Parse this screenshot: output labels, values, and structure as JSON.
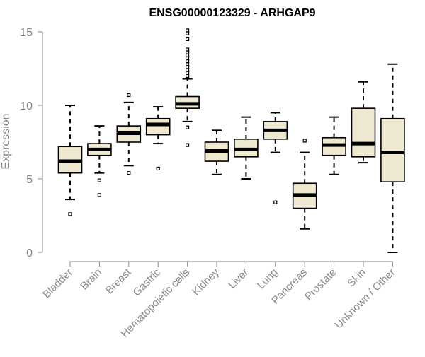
{
  "chart_data": {
    "type": "boxplot",
    "title": "ENSG00000123329 - ARHGAP9",
    "xlabel": "",
    "ylabel": "Expression",
    "ylim": [
      0,
      15
    ],
    "yticks": [
      0,
      5,
      10,
      15
    ],
    "box_fill": "#efe9d1",
    "categories": [
      "Bladder",
      "Brain",
      "Breast",
      "Gastric",
      "Hematopoietic cells",
      "Kidney",
      "Liver",
      "Lung",
      "Pancreas",
      "Prostate",
      "Skin",
      "Unknown / Other"
    ],
    "boxes": [
      {
        "min": 3.6,
        "q1": 5.4,
        "median": 6.2,
        "q3": 7.2,
        "max": 10.0,
        "outliers": [
          2.6
        ]
      },
      {
        "min": 5.4,
        "q1": 6.6,
        "median": 7.0,
        "q3": 7.4,
        "max": 8.6,
        "outliers": [
          4.9,
          3.9
        ]
      },
      {
        "min": 5.9,
        "q1": 7.5,
        "median": 8.1,
        "q3": 8.6,
        "max": 10.2,
        "outliers": [
          10.7,
          5.4
        ]
      },
      {
        "min": 7.4,
        "q1": 8.0,
        "median": 8.7,
        "q3": 9.1,
        "max": 9.9,
        "outliers": [
          5.7
        ]
      },
      {
        "min": 8.9,
        "q1": 9.8,
        "median": 10.1,
        "q3": 10.6,
        "max": 11.8,
        "outliers": [
          15.1,
          14.9,
          14.5,
          13.8,
          13.6,
          13.4,
          13.2,
          13.0,
          12.8,
          12.6,
          12.4,
          12.2,
          12.0,
          8.5,
          7.3
        ]
      },
      {
        "min": 5.3,
        "q1": 6.2,
        "median": 6.9,
        "q3": 7.5,
        "max": 8.3,
        "outliers": []
      },
      {
        "min": 5.0,
        "q1": 6.5,
        "median": 7.0,
        "q3": 7.7,
        "max": 9.2,
        "outliers": []
      },
      {
        "min": 6.8,
        "q1": 7.7,
        "median": 8.3,
        "q3": 8.9,
        "max": 9.5,
        "outliers": [
          3.4
        ]
      },
      {
        "min": 1.6,
        "q1": 3.0,
        "median": 3.9,
        "q3": 4.7,
        "max": 6.8,
        "outliers": [
          7.6
        ]
      },
      {
        "min": 5.3,
        "q1": 6.6,
        "median": 7.3,
        "q3": 7.8,
        "max": 9.2,
        "outliers": []
      },
      {
        "min": 6.1,
        "q1": 6.5,
        "median": 7.4,
        "q3": 9.8,
        "max": 11.6,
        "outliers": []
      },
      {
        "min": 0.0,
        "q1": 4.8,
        "median": 6.8,
        "q3": 9.1,
        "max": 12.8,
        "outliers": []
      }
    ]
  }
}
